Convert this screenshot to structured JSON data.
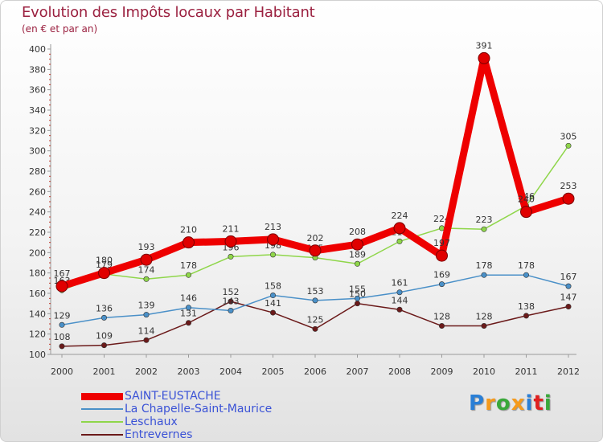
{
  "header": {
    "title": "Evolution des Impôts locaux par Habitant",
    "subtitle": "(en € et par an)"
  },
  "chart_data": {
    "type": "line",
    "title": "Evolution des Impôts locaux par Habitant",
    "subtitle": "(en € et par an)",
    "x": [
      2000,
      2001,
      2002,
      2003,
      2004,
      2005,
      2006,
      2007,
      2008,
      2009,
      2010,
      2011,
      2012
    ],
    "ylim": [
      100,
      400
    ],
    "yticks": [
      100,
      120,
      140,
      160,
      180,
      200,
      220,
      240,
      260,
      280,
      300,
      320,
      340,
      360,
      380,
      400
    ],
    "grid": false,
    "legend_position": "bottom-left",
    "series": [
      {
        "name": "Entrevernes",
        "color": "#6b1a1a",
        "emphasis": false,
        "values": [
          108,
          109,
          114,
          131,
          152,
          141,
          125,
          150,
          144,
          128,
          128,
          138,
          147
        ]
      },
      {
        "name": "La Chapelle-Saint-Maurice",
        "color": "#4a90c8",
        "emphasis": false,
        "values": [
          129,
          136,
          139,
          146,
          143,
          158,
          153,
          155,
          161,
          169,
          178,
          178,
          167
        ]
      },
      {
        "name": "Leschaux",
        "color": "#8fd64a",
        "emphasis": false,
        "values": [
          163,
          179,
          174,
          178,
          196,
          198,
          195,
          189,
          211,
          224,
          223,
          246,
          305
        ]
      },
      {
        "name": "SAINT-EUSTACHE",
        "color": "#ee0000",
        "emphasis": true,
        "values": [
          167,
          180,
          193,
          210,
          211,
          213,
          202,
          208,
          224,
          197,
          391,
          240,
          253
        ]
      }
    ]
  },
  "legend": {
    "items": [
      {
        "label": "SAINT-EUSTACHE",
        "color": "#ee0000",
        "thickness": 9
      },
      {
        "label": "La Chapelle-Saint-Maurice",
        "color": "#4a90c8",
        "thickness": 2
      },
      {
        "label": "Leschaux",
        "color": "#8fd64a",
        "thickness": 2
      },
      {
        "label": "Entrevernes",
        "color": "#6b1a1a",
        "thickness": 2
      }
    ]
  },
  "logo": {
    "letters": [
      "P",
      "r",
      "o",
      "x",
      "i",
      "t",
      "i"
    ],
    "colors": [
      "#2a7fd6",
      "#f59a1c",
      "#3aa83a",
      "#f59a1c",
      "#2a7fd6",
      "#e02020",
      "#3aa83a"
    ]
  }
}
